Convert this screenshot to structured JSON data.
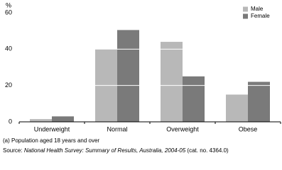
{
  "chart_data": {
    "type": "bar",
    "y_label": "%",
    "categories": [
      "Underweight",
      "Normal",
      "Overweight",
      "Obese"
    ],
    "series": [
      {
        "name": "Male",
        "color": "#b8b8b8",
        "values": [
          1.5,
          40,
          44,
          15
        ]
      },
      {
        "name": "Female",
        "color": "#7a7a7a",
        "values": [
          3,
          50.5,
          25,
          22
        ]
      }
    ],
    "ylim": [
      0,
      60
    ],
    "yticks": [
      0,
      20,
      40,
      60
    ],
    "grid": true,
    "grid_color": "#ffffff",
    "legend": "top-right",
    "footnote": "(a) Population aged 18 years and over",
    "source": [
      "Source:",
      "National Health Survey: Summary of Results, Australia, 2004-05",
      "(cat. no. 4364.0)"
    ]
  }
}
